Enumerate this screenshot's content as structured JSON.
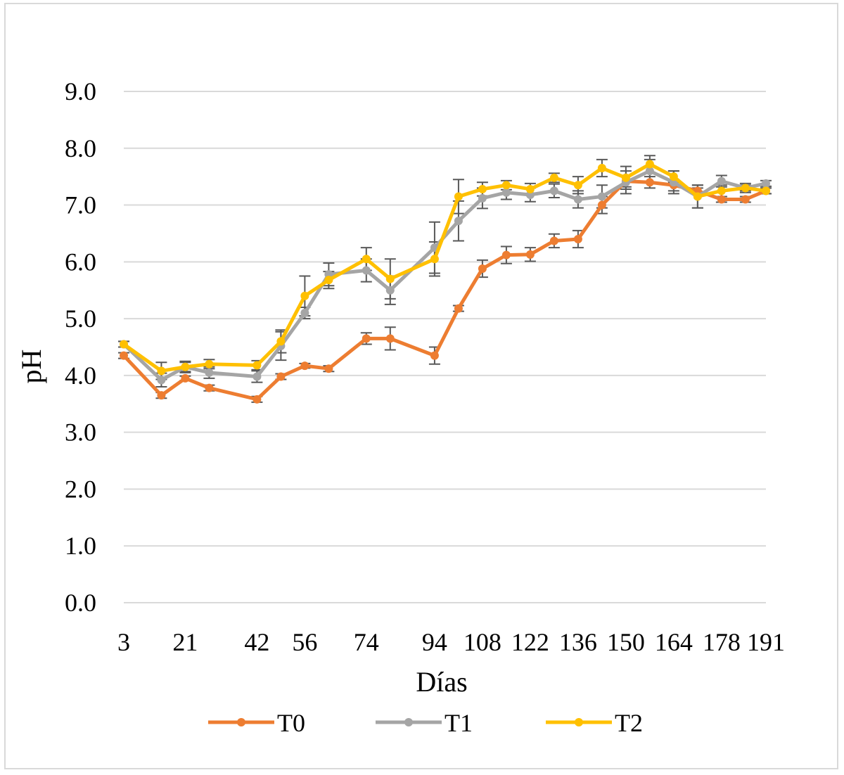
{
  "chart_data": {
    "type": "line",
    "xlabel": "Días",
    "ylabel": "pH",
    "ylim": [
      0,
      9
    ],
    "y_ticks": [
      "0.0",
      "1.0",
      "2.0",
      "3.0",
      "4.0",
      "5.0",
      "6.0",
      "7.0",
      "8.0",
      "9.0"
    ],
    "x_tick_labels": [
      "3",
      "21",
      "42",
      "56",
      "74",
      "94",
      "108",
      "122",
      "136",
      "150",
      "164",
      "178",
      "191"
    ],
    "categories": [
      3,
      14,
      21,
      28,
      42,
      49,
      56,
      63,
      74,
      81,
      94,
      101,
      108,
      115,
      122,
      129,
      136,
      143,
      150,
      157,
      164,
      171,
      178,
      185,
      191
    ],
    "grid": "horizontal",
    "legend": "bottom",
    "series": [
      {
        "name": "T0",
        "color": "#ED7D31",
        "values": [
          4.35,
          3.65,
          3.95,
          3.78,
          3.58,
          3.98,
          4.17,
          4.12,
          4.65,
          4.65,
          4.35,
          5.18,
          5.88,
          6.12,
          6.13,
          6.37,
          6.4,
          7.0,
          7.42,
          7.4,
          7.35,
          7.25,
          7.1,
          7.1,
          7.25
        ],
        "errors": [
          0.05,
          0.05,
          0.04,
          0.05,
          0.05,
          0.05,
          0.04,
          0.05,
          0.1,
          0.2,
          0.15,
          0.05,
          0.15,
          0.15,
          0.12,
          0.12,
          0.15,
          0.15,
          0.1,
          0.1,
          0.1,
          0.05,
          0.05,
          0.05,
          0.05
        ]
      },
      {
        "name": "T1",
        "color": "#A5A5A5",
        "values": [
          4.55,
          3.92,
          4.15,
          4.05,
          3.98,
          4.52,
          5.1,
          5.78,
          5.85,
          5.5,
          6.25,
          6.72,
          7.12,
          7.22,
          7.18,
          7.25,
          7.1,
          7.15,
          7.4,
          7.6,
          7.4,
          7.15,
          7.42,
          7.3,
          7.38
        ],
        "errors": [
          0.05,
          0.12,
          0.08,
          0.1,
          0.1,
          0.25,
          0.1,
          0.2,
          0.2,
          0.25,
          0.45,
          0.35,
          0.18,
          0.12,
          0.12,
          0.12,
          0.15,
          0.2,
          0.2,
          0.2,
          0.2,
          0.2,
          0.1,
          0.08,
          0.05
        ]
      },
      {
        "name": "T2",
        "color": "#FFC000",
        "values": [
          4.55,
          4.08,
          4.15,
          4.2,
          4.18,
          4.6,
          5.4,
          5.68,
          6.05,
          5.7,
          6.05,
          7.15,
          7.28,
          7.35,
          7.28,
          7.48,
          7.35,
          7.65,
          7.48,
          7.72,
          7.5,
          7.15,
          7.25,
          7.3,
          7.25
        ],
        "errors": [
          0.05,
          0.15,
          0.1,
          0.08,
          0.08,
          0.2,
          0.35,
          0.15,
          0.2,
          0.35,
          0.3,
          0.3,
          0.12,
          0.08,
          0.1,
          0.08,
          0.15,
          0.15,
          0.2,
          0.15,
          0.1,
          0.2,
          0.1,
          0.05,
          0.05
        ]
      }
    ]
  }
}
